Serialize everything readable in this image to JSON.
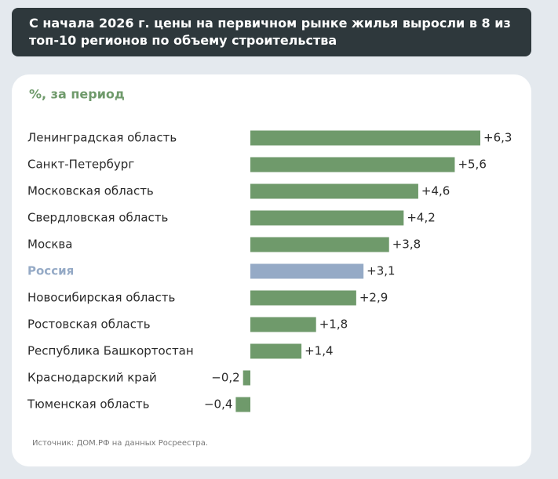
{
  "chart_data": {
    "type": "hbar",
    "title": "С начала 2026 г. цены на первичном рынке жилья выросли в 8 из топ-10 регионов по объему строительства",
    "subtitle": "%, за период",
    "categories": [
      "Ленинградская область",
      "Санкт-Петербург",
      "Московская область",
      "Свердловская область",
      "Москва",
      "Россия",
      "Новосибирская область",
      "Ростовская область",
      "Республика Башкортостан",
      "Краснодарский край",
      "Тюменская область"
    ],
    "values": [
      6.3,
      5.6,
      4.6,
      4.2,
      3.8,
      3.1,
      2.9,
      1.8,
      1.4,
      -0.2,
      -0.4
    ],
    "value_labels": [
      "+6,3",
      "+5,6",
      "+4,6",
      "+4,2",
      "+3,8",
      "+3,1",
      "+2,9",
      "+1,8",
      "+1,4",
      "−0,2",
      "−0,4"
    ],
    "color": "#6f9a6b",
    "highlight": 5,
    "highlight_color": "#95aac6",
    "source": "Источник: ДОМ.РФ на данных Росреестра."
  }
}
